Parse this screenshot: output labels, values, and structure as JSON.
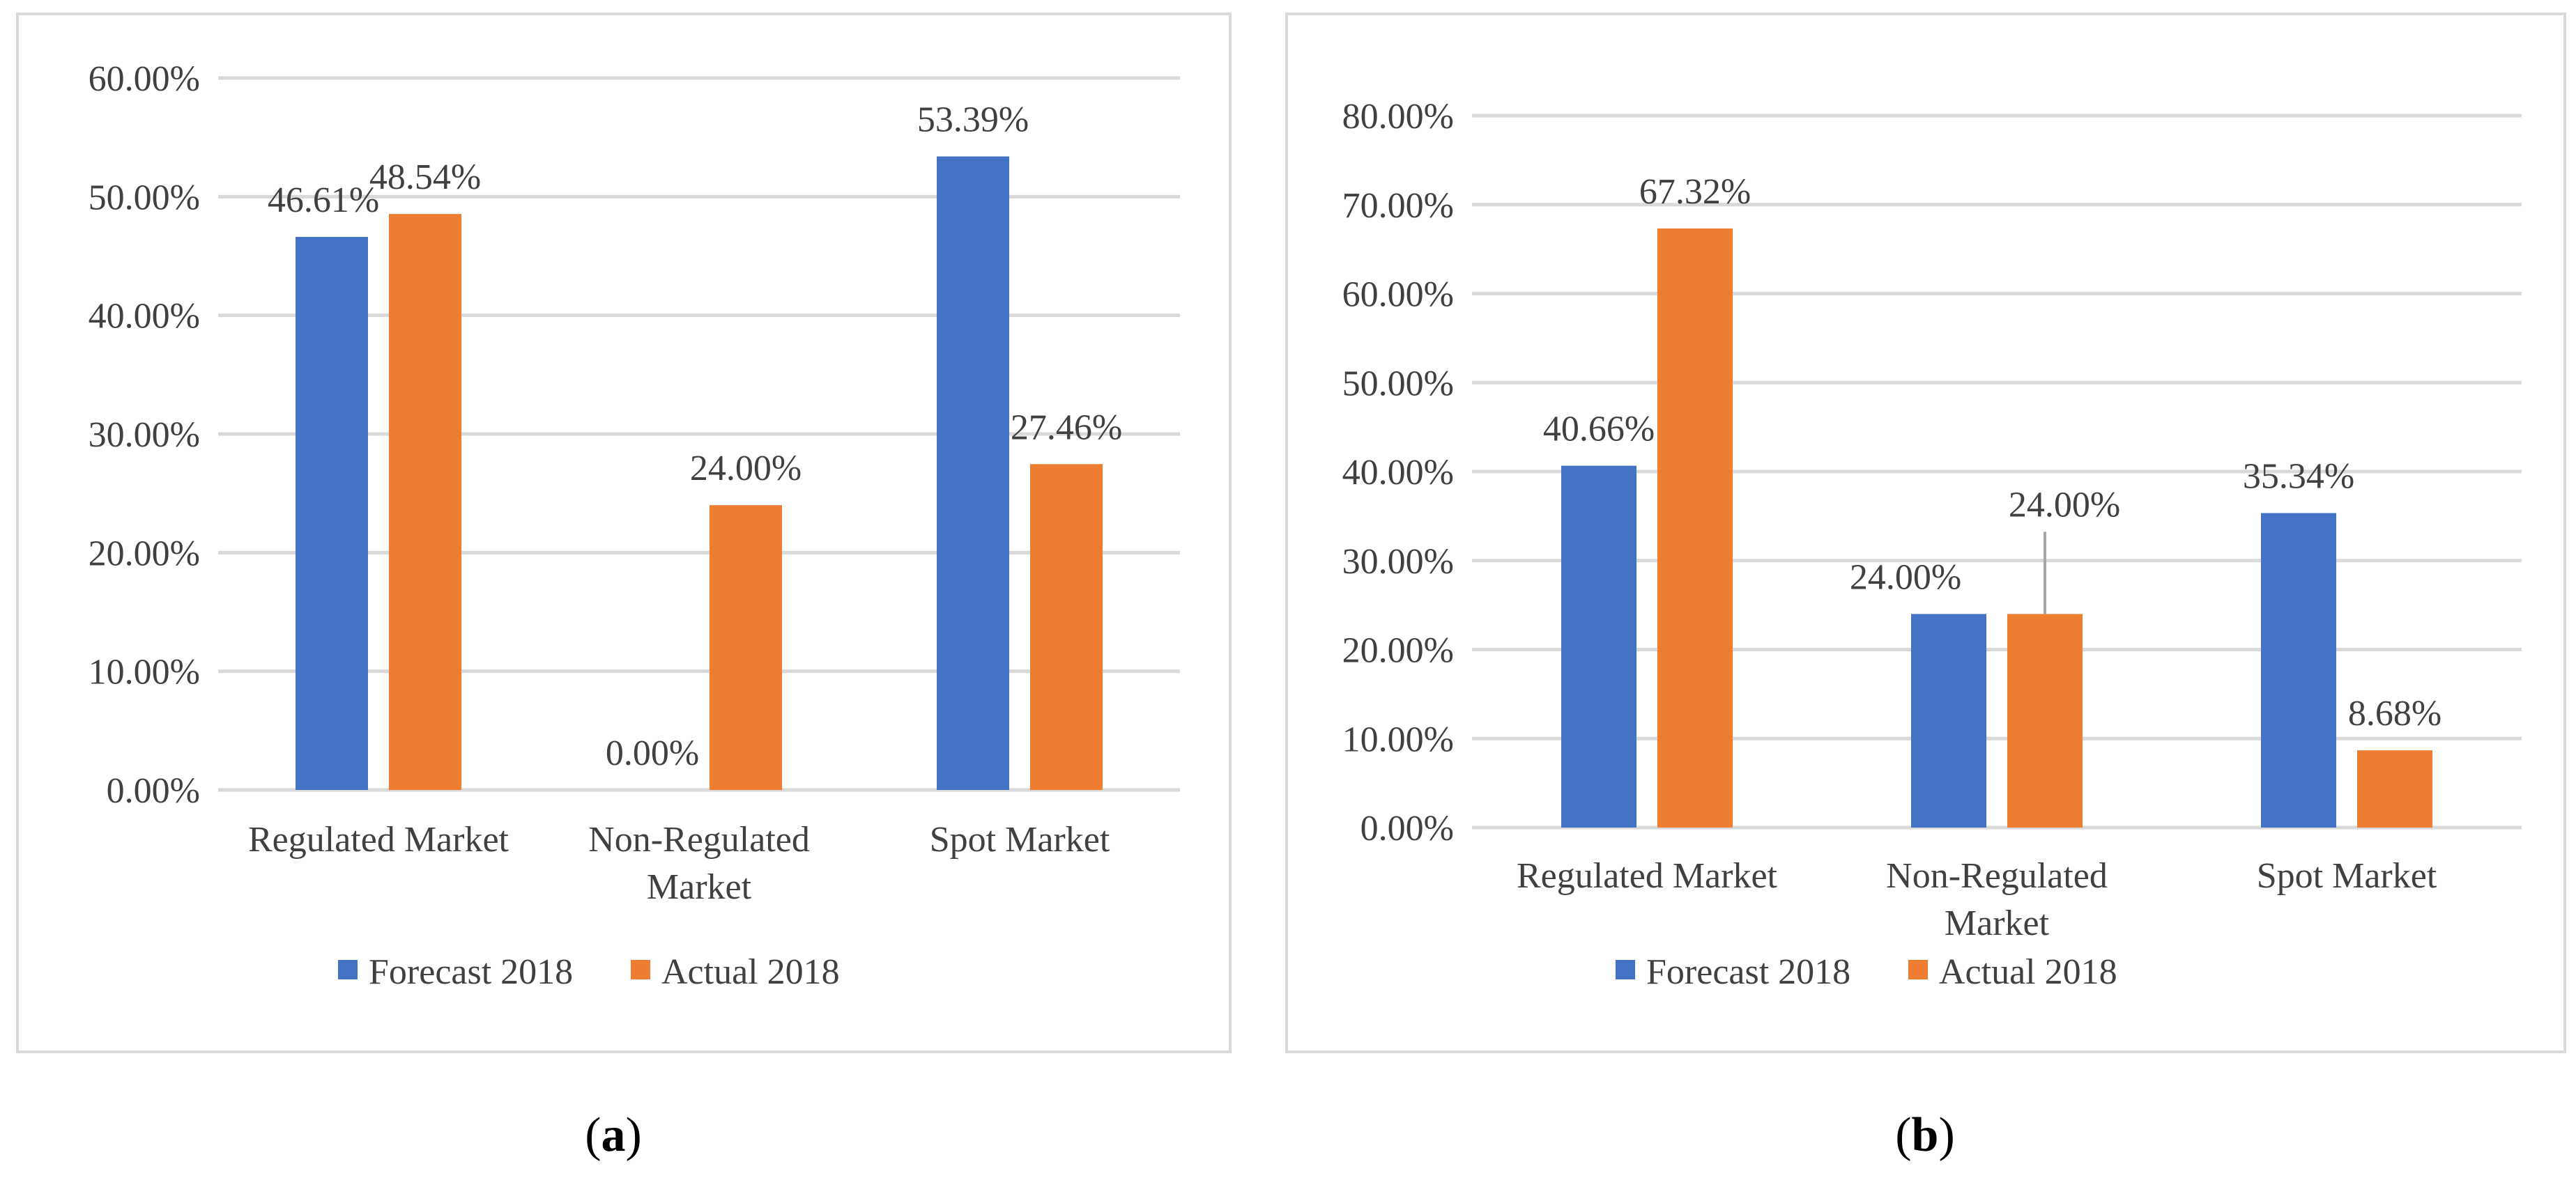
{
  "colors": {
    "forecast": "#4472c4",
    "actual": "#ed7d31",
    "grid": "#d9d9d9",
    "text": "#404040",
    "leader": "#a6a6a6"
  },
  "chart_data": [
    {
      "panel": "a",
      "type": "bar",
      "categories": [
        "Regulated Market",
        "Non-Regulated Market",
        "Spot Market"
      ],
      "category_lines": [
        [
          "Regulated Market"
        ],
        [
          "Non-Regulated",
          "Market"
        ],
        [
          "Spot Market"
        ]
      ],
      "series": [
        {
          "name": "Forecast 2018",
          "values": [
            46.61,
            0.0,
            53.39
          ]
        },
        {
          "name": "Actual 2018",
          "values": [
            48.54,
            24.0,
            27.46
          ]
        }
      ],
      "ylim": [
        0,
        60
      ],
      "yticks": [
        0,
        10,
        20,
        30,
        40,
        50,
        60
      ],
      "ytick_labels": [
        "0.00%",
        "10.00%",
        "20.00%",
        "30.00%",
        "40.00%",
        "50.00%",
        "60.00%"
      ],
      "data_labels": [
        [
          "46.61%",
          "0.00%",
          "53.39%"
        ],
        [
          "48.54%",
          "24.00%",
          "27.46%"
        ]
      ],
      "legend": "bottom",
      "grid": true
    },
    {
      "panel": "b",
      "type": "bar",
      "categories": [
        "Regulated Market",
        "Non-Regulated Market",
        "Spot Market"
      ],
      "category_lines": [
        [
          "Regulated Market"
        ],
        [
          "Non-Regulated",
          "Market"
        ],
        [
          "Spot Market"
        ]
      ],
      "series": [
        {
          "name": "Forecast 2018",
          "values": [
            40.66,
            24.0,
            35.34
          ]
        },
        {
          "name": "Actual 2018",
          "values": [
            67.32,
            24.0,
            8.68
          ]
        }
      ],
      "ylim": [
        0,
        80
      ],
      "yticks": [
        0,
        10,
        20,
        30,
        40,
        50,
        60,
        70,
        80
      ],
      "ytick_labels": [
        "0.00%",
        "10.00%",
        "20.00%",
        "30.00%",
        "40.00%",
        "50.00%",
        "60.00%",
        "70.00%",
        "80.00%"
      ],
      "data_labels": [
        [
          "40.66%",
          "24.00%",
          "35.34%"
        ],
        [
          "67.32%",
          "24.00%",
          "8.68%"
        ]
      ],
      "legend": "bottom",
      "grid": true
    }
  ],
  "captions": {
    "a": "a",
    "b": "b"
  }
}
